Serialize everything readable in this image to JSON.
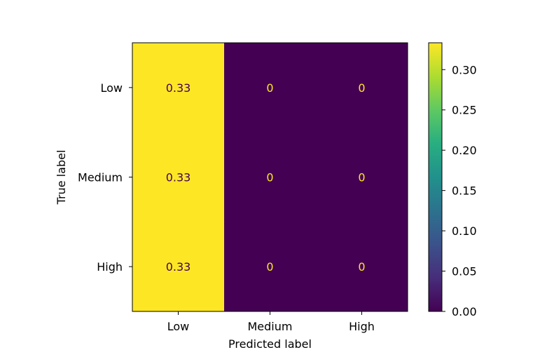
{
  "chart_data": {
    "type": "heatmap",
    "title": "",
    "xlabel": "Predicted label",
    "ylabel": "True label",
    "x_categories": [
      "Low",
      "Medium",
      "High"
    ],
    "y_categories": [
      "Low",
      "Medium",
      "High"
    ],
    "values": [
      [
        0.33,
        0,
        0
      ],
      [
        0.33,
        0,
        0
      ],
      [
        0.33,
        0,
        0
      ]
    ],
    "cell_labels": [
      [
        "0.33",
        "0",
        "0"
      ],
      [
        "0.33",
        "0",
        "0"
      ],
      [
        "0.33",
        "0",
        "0"
      ]
    ],
    "colormap": "viridis",
    "colorbar": {
      "range": [
        0,
        0.3333
      ],
      "ticks": [
        "0.00",
        "0.05",
        "0.10",
        "0.15",
        "0.20",
        "0.25",
        "0.30"
      ]
    },
    "colors": {
      "high": "#fde725",
      "low": "#440154",
      "label_on_high": "#440154",
      "label_on_low": "#fde725"
    },
    "grid": false,
    "legend": "colorbar-right"
  }
}
